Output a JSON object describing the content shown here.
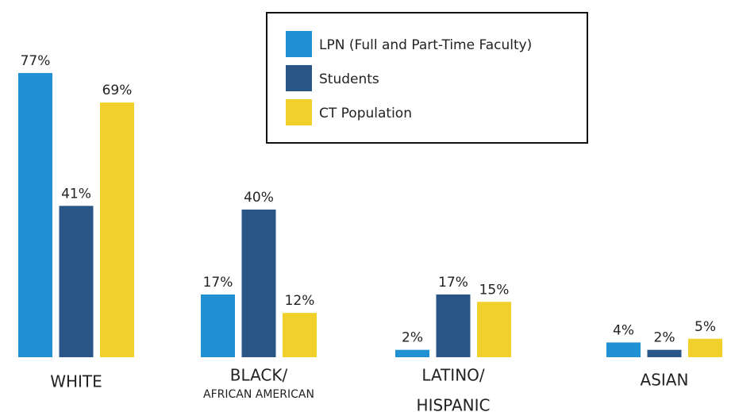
{
  "chart_data": {
    "type": "bar",
    "categories": [
      "WHITE",
      [
        "BLACK/",
        "AFRICAN AMERICAN"
      ],
      [
        "LATINO/",
        "HISPANIC"
      ],
      "ASIAN"
    ],
    "series": [
      {
        "name": "LPN (Full and Part-Time Faculty)",
        "color": "#2191d3",
        "values": [
          77,
          17,
          2,
          4
        ],
        "value_labels": [
          "77%",
          "17%",
          "2%",
          "4%"
        ]
      },
      {
        "name": "Students",
        "color": "#2a5587",
        "values": [
          41,
          40,
          17,
          2
        ],
        "value_labels": [
          "41%",
          "40%",
          "17%",
          "2%"
        ]
      },
      {
        "name": "CT Population",
        "color": "#f2d02b",
        "values": [
          69,
          12,
          15,
          5
        ],
        "value_labels": [
          "69%",
          "12%",
          "15%",
          "5%"
        ]
      }
    ],
    "legend": "top-right"
  }
}
